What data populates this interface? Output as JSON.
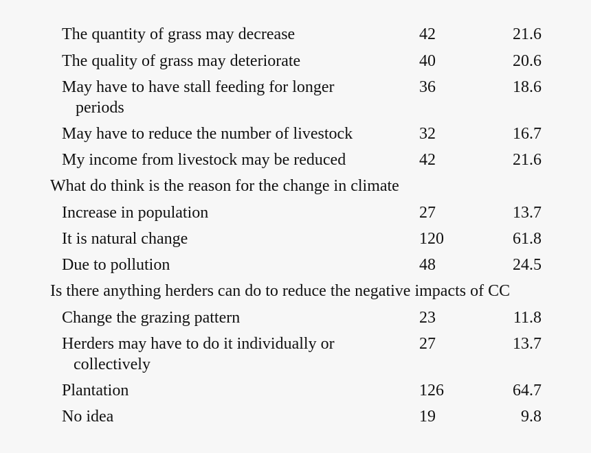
{
  "rows": [
    {
      "type": "item",
      "label": "The quantity of grass may decrease",
      "count": "42",
      "percent": "21.6"
    },
    {
      "type": "item",
      "label": "The quality of grass may deteriorate",
      "count": "40",
      "percent": "20.6"
    },
    {
      "type": "item",
      "label": "May have to have stall feeding for longer",
      "label_cont": "periods",
      "count": "36",
      "percent": "18.6"
    },
    {
      "type": "item",
      "label": "May have to reduce the number of livestock",
      "count": "32",
      "percent": "16.7"
    },
    {
      "type": "item",
      "label": "My income from livestock may be reduced",
      "count": "42",
      "percent": "21.6"
    },
    {
      "type": "section",
      "label": "What do think is the reason for the change in climate"
    },
    {
      "type": "item",
      "label": "Increase in population",
      "count": "27",
      "percent": "13.7"
    },
    {
      "type": "item",
      "label": "It is natural change",
      "count": "120",
      "percent": "61.8"
    },
    {
      "type": "item",
      "label": "Due to pollution",
      "count": "48",
      "percent": "24.5"
    },
    {
      "type": "section",
      "label": "Is there anything herders can do to reduce the negative impacts of CC"
    },
    {
      "type": "item",
      "label": "Change the grazing pattern",
      "count": "23",
      "percent": "11.8"
    },
    {
      "type": "item",
      "label": "Herders may have to do it individually or",
      "label_cont": "collectively",
      "count": "27",
      "percent": "13.7"
    },
    {
      "type": "item",
      "label": "Plantation",
      "count": "126",
      "percent": "64.7"
    },
    {
      "type": "item",
      "label": "No idea",
      "count": "19",
      "percent": "9.8"
    }
  ]
}
